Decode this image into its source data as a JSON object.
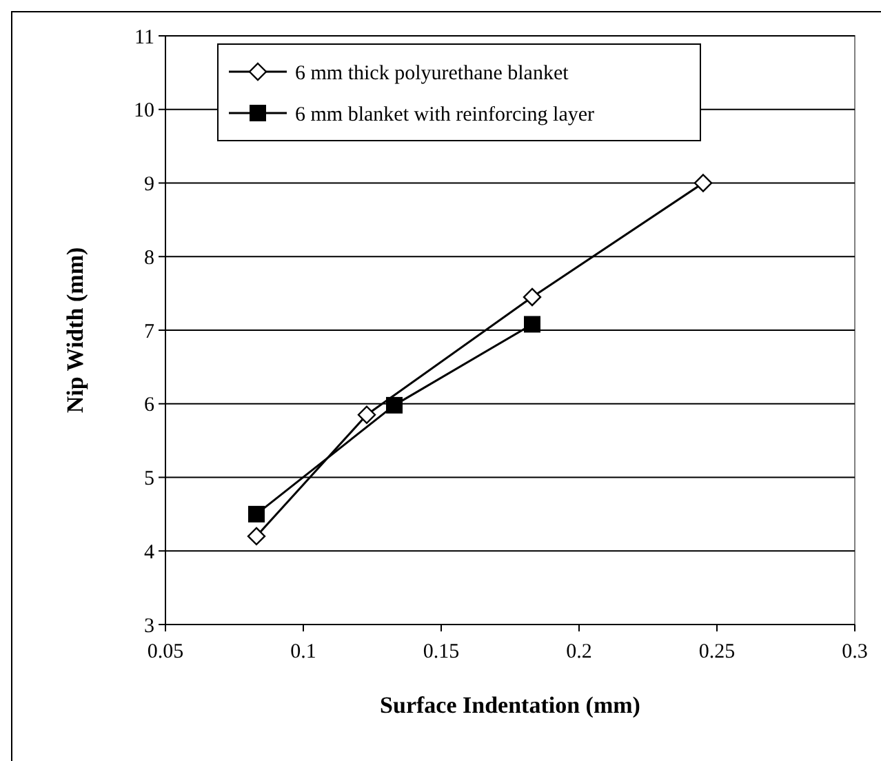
{
  "chart_data": {
    "type": "line",
    "xlabel": "Surface Indentation (mm)",
    "ylabel": "Nip Width (mm)",
    "xlim": [
      0.05,
      0.3
    ],
    "xticks": [
      0.05,
      0.1,
      0.15,
      0.2,
      0.25,
      0.3
    ],
    "ylim": [
      3,
      11
    ],
    "yticks": [
      3,
      4,
      5,
      6,
      7,
      8,
      9,
      10,
      11
    ],
    "grid": "y",
    "legend": "top left",
    "series": [
      {
        "name": "6 mm thick polyurethane blanket",
        "color": "#000000",
        "marker": "diamond",
        "x": [
          0.083,
          0.123,
          0.183,
          0.245
        ],
        "values": [
          4.2,
          5.85,
          7.45,
          9.0
        ]
      },
      {
        "name": "6 mm blanket with reinforcing layer",
        "color": "#000000",
        "marker": "square",
        "x": [
          0.083,
          0.133,
          0.183
        ],
        "values": [
          4.5,
          5.98,
          7.08
        ]
      }
    ]
  }
}
